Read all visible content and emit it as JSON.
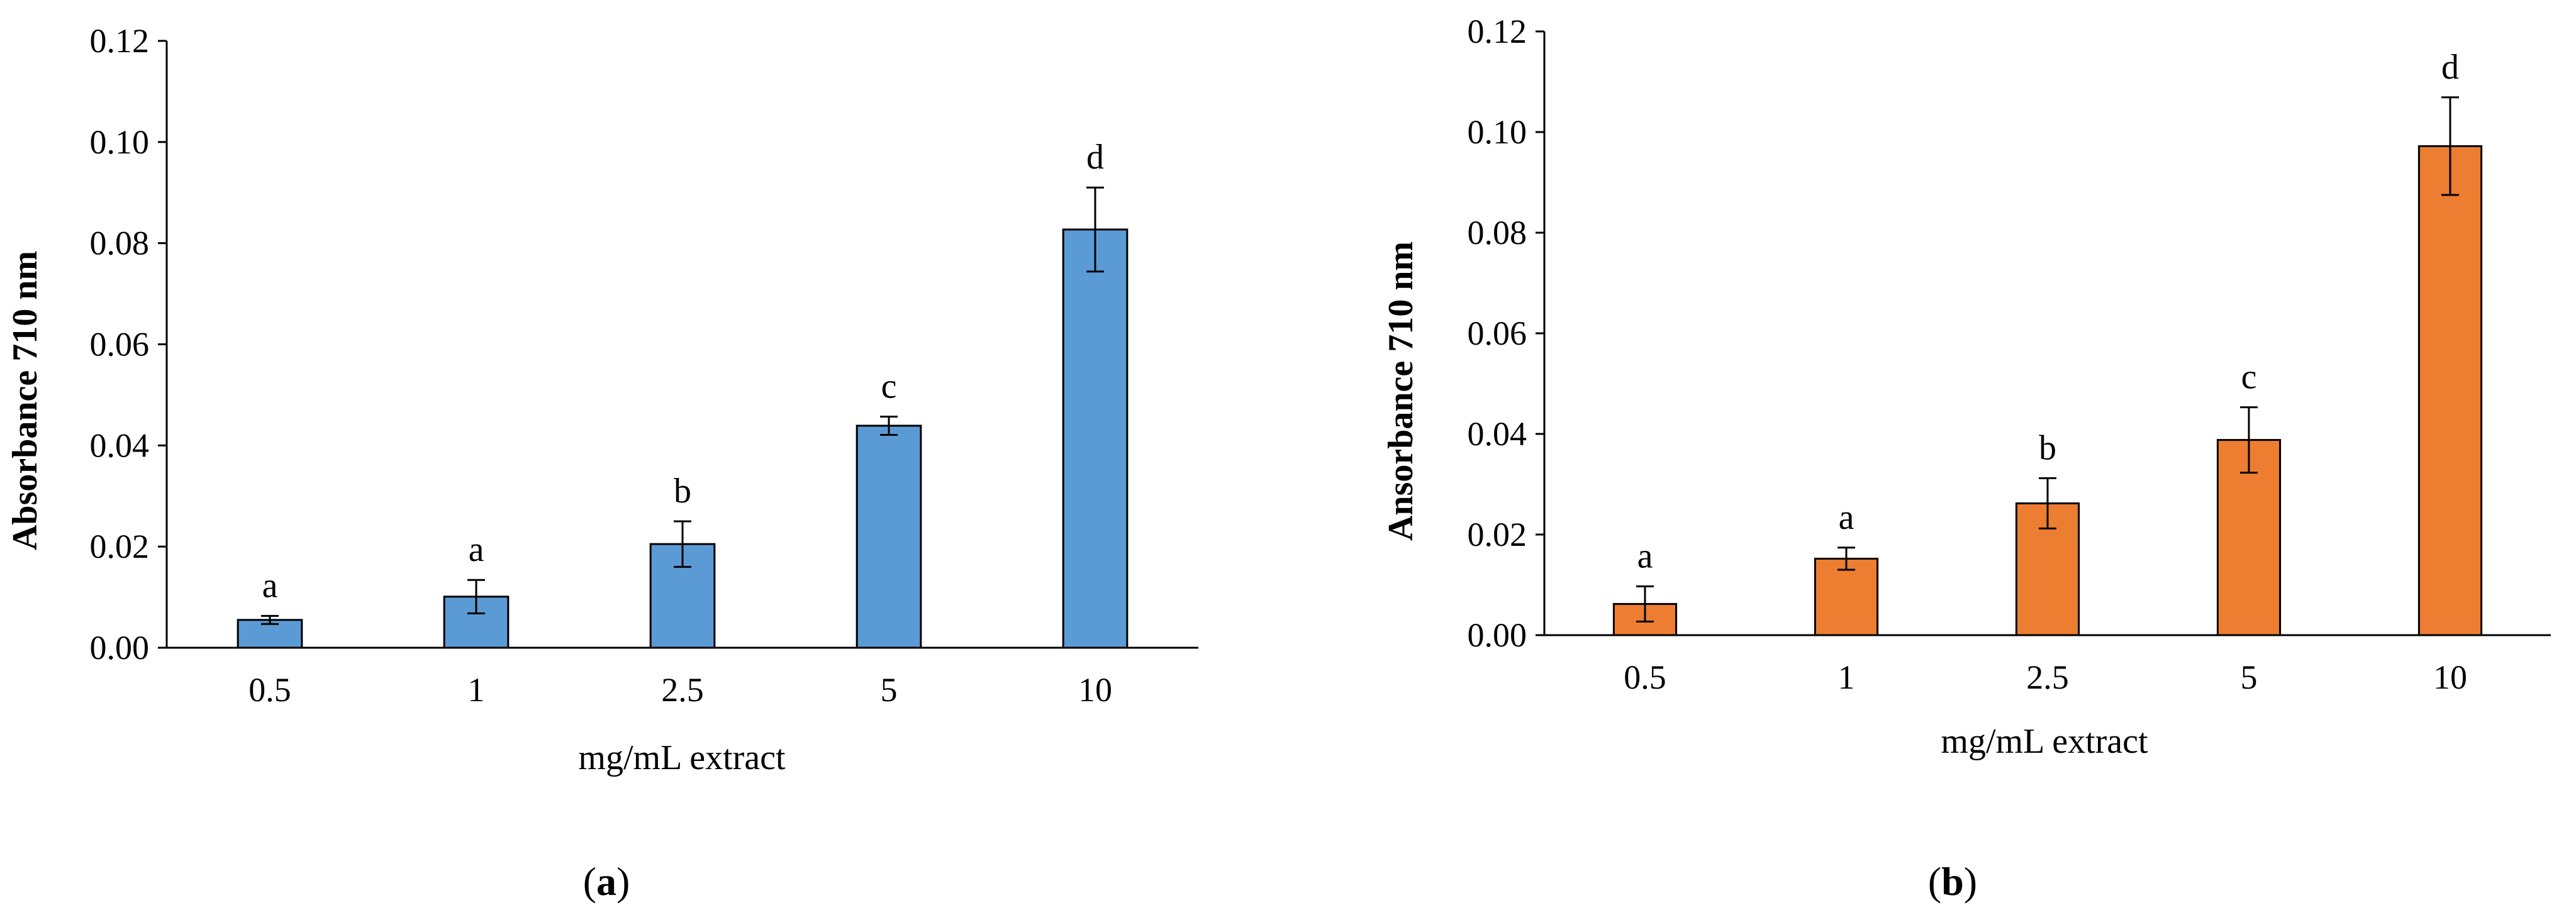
{
  "chart_data": [
    {
      "type": "bar",
      "panel_label": "a",
      "categories": [
        "0.5",
        "1",
        "2.5",
        "5",
        "10"
      ],
      "values": [
        0.0055,
        0.0101,
        0.0205,
        0.0439,
        0.0827
      ],
      "errors": [
        0.0008,
        0.0033,
        0.0045,
        0.0018,
        0.0083
      ],
      "significance": [
        "a",
        "a",
        "b",
        "c",
        "d"
      ],
      "xlabel": "mg/mL extract",
      "ylabel": "Absorbance 710 nm",
      "ylim": [
        0,
        0.12
      ],
      "yticks": [
        "0.00",
        "0.02",
        "0.04",
        "0.06",
        "0.08",
        "0.10",
        "0.12"
      ],
      "bar_color": "#5b9bd5",
      "grid": false
    },
    {
      "type": "bar",
      "panel_label": "b",
      "categories": [
        "0.5",
        "1",
        "2.5",
        "5",
        "10"
      ],
      "values": [
        0.0062,
        0.0152,
        0.0262,
        0.0388,
        0.0972
      ],
      "errors": [
        0.0035,
        0.0022,
        0.005,
        0.0065,
        0.0097
      ],
      "significance": [
        "a",
        "a",
        "b",
        "c",
        "d"
      ],
      "xlabel": "mg/mL extract",
      "ylabel": "Ansorbance 710 nm",
      "ylim": [
        0,
        0.12
      ],
      "yticks": [
        "0.00",
        "0.02",
        "0.04",
        "0.06",
        "0.08",
        "0.10",
        "0.12"
      ],
      "bar_color": "#ed7d31",
      "grid": false
    }
  ]
}
